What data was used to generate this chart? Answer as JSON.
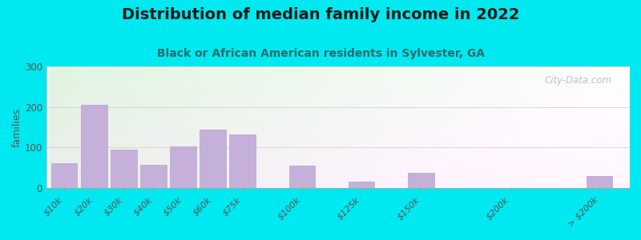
{
  "title": "Distribution of median family income in 2022",
  "subtitle": "Black or African American residents in Sylvester, GA",
  "ylabel": "families",
  "categories": [
    "$10k",
    "$20k",
    "$30k",
    "$40k",
    "$50k",
    "$60k",
    "$75k",
    "$100k",
    "$125k",
    "$150k",
    "$200k",
    "> $200k"
  ],
  "values": [
    62,
    205,
    95,
    58,
    102,
    145,
    132,
    55,
    15,
    37,
    0,
    30
  ],
  "bar_color": "#c4b0d8",
  "bar_edge_color": "#b8a4cc",
  "bg_outer": "#00e8f0",
  "ylim": [
    0,
    300
  ],
  "yticks": [
    0,
    100,
    200,
    300
  ],
  "title_fontsize": 14,
  "title_color": "#1a1a1a",
  "subtitle_fontsize": 10,
  "subtitle_color": "#2d6b6b",
  "ylabel_fontsize": 9,
  "watermark": "City-Data.com",
  "grid_color": "#d4d0c0",
  "grid_alpha": 0.8,
  "bar_positions": [
    0,
    1,
    2,
    3,
    4,
    5,
    6,
    8,
    10,
    12,
    15,
    18
  ],
  "bar_widths": [
    1,
    1,
    1,
    1,
    1,
    1,
    1,
    1,
    1,
    1,
    1,
    1
  ]
}
